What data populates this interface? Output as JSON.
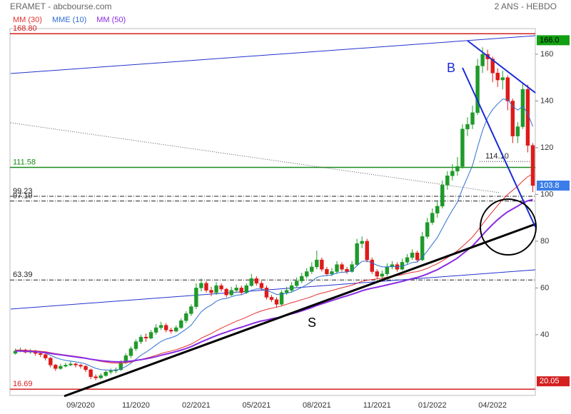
{
  "chart_data": {
    "type": "candlestick",
    "title": "ERAMET - abcbourse.com",
    "subtitle": "2 ANS - HEBDO",
    "annotations": [
      "B",
      "S"
    ],
    "categories": [
      null,
      null,
      null,
      null,
      null,
      null,
      null,
      null,
      null,
      null,
      null,
      null,
      null,
      "09/2020",
      null,
      null,
      null,
      null,
      null,
      null,
      null,
      null,
      null,
      null,
      "11/2020",
      null,
      null,
      null,
      null,
      null,
      null,
      null,
      null,
      null,
      null,
      null,
      "02/2021",
      null,
      null,
      null,
      null,
      null,
      null,
      null,
      null,
      null,
      null,
      null,
      "05/2021",
      null,
      null,
      null,
      null,
      null,
      null,
      null,
      null,
      null,
      null,
      null,
      "08/2021",
      null,
      null,
      null,
      null,
      null,
      null,
      null,
      null,
      null,
      null,
      null,
      "11/2021",
      null,
      null,
      null,
      null,
      null,
      null,
      null,
      null,
      null,
      null,
      "01/2022",
      null,
      null,
      null,
      null,
      null,
      null,
      null,
      null,
      null,
      null,
      null,
      "04/2022",
      null,
      null,
      null,
      null,
      null,
      null,
      null,
      null
    ],
    "candles": [
      [
        32,
        34,
        31.5,
        33
      ],
      [
        33,
        34.5,
        32.5,
        33.5
      ],
      [
        33.5,
        34,
        32,
        32.5
      ],
      [
        32.5,
        33.8,
        31.8,
        33
      ],
      [
        33,
        33.5,
        31,
        32
      ],
      [
        32,
        32.5,
        30.5,
        31.5
      ],
      [
        31.5,
        32,
        29,
        30
      ],
      [
        30,
        30.5,
        26,
        27
      ],
      [
        27,
        27.5,
        24.5,
        25.5
      ],
      [
        25.5,
        27.5,
        25,
        26.5
      ],
      [
        26.5,
        28,
        26,
        27
      ],
      [
        27,
        28.5,
        26.5,
        27.5
      ],
      [
        27.5,
        28,
        26,
        27
      ],
      [
        27,
        27.5,
        25.5,
        26.5
      ],
      [
        26.5,
        27,
        24,
        25
      ],
      [
        25,
        25.5,
        21,
        22
      ],
      [
        22,
        23,
        20.5,
        21.5
      ],
      [
        21.5,
        23.5,
        21,
        22.5
      ],
      [
        22.5,
        25,
        22,
        24
      ],
      [
        24,
        25.5,
        23,
        24.5
      ],
      [
        24.5,
        26,
        23.5,
        25
      ],
      [
        25,
        29,
        24.5,
        28
      ],
      [
        28,
        32,
        27.5,
        31
      ],
      [
        31,
        35,
        30,
        34
      ],
      [
        34,
        38,
        33,
        37
      ],
      [
        37,
        40,
        36,
        39
      ],
      [
        39,
        40.5,
        37,
        38.5
      ],
      [
        38.5,
        42,
        38,
        41
      ],
      [
        41,
        44.5,
        40,
        43
      ],
      [
        43,
        45.5,
        42,
        44
      ],
      [
        44,
        45,
        41,
        42
      ],
      [
        42,
        43,
        40.5,
        41.5
      ],
      [
        41.5,
        44,
        41,
        43
      ],
      [
        43,
        47,
        42.5,
        46
      ],
      [
        46,
        50,
        45,
        49
      ],
      [
        49,
        53,
        48,
        52
      ],
      [
        52,
        62,
        51,
        60
      ],
      [
        60,
        64,
        58.5,
        62
      ],
      [
        62,
        63,
        58,
        59
      ],
      [
        59,
        60.5,
        56.5,
        58
      ],
      [
        58,
        62.5,
        57,
        61
      ],
      [
        61,
        62,
        58.5,
        59.5
      ],
      [
        59.5,
        60,
        56,
        57
      ],
      [
        57,
        60.5,
        56.5,
        59
      ],
      [
        59,
        61.5,
        58,
        60
      ],
      [
        60,
        61,
        57,
        58
      ],
      [
        58,
        62,
        57.5,
        61
      ],
      [
        61,
        66,
        60.5,
        64
      ],
      [
        64,
        65,
        61,
        62
      ],
      [
        62,
        63,
        59,
        60
      ],
      [
        60,
        61,
        55,
        56
      ],
      [
        56,
        57,
        54,
        55
      ],
      [
        55,
        56,
        51.5,
        53
      ],
      [
        53,
        59,
        52.5,
        58
      ],
      [
        58,
        60.5,
        57,
        59
      ],
      [
        59,
        62.5,
        58,
        61
      ],
      [
        61,
        64.5,
        60,
        63
      ],
      [
        63,
        66.5,
        62,
        65
      ],
      [
        65,
        68.5,
        64,
        67
      ],
      [
        67,
        71,
        66,
        69
      ],
      [
        69,
        76,
        68,
        72
      ],
      [
        72,
        73,
        67,
        68
      ],
      [
        68,
        69,
        65,
        66
      ],
      [
        66,
        68.5,
        65,
        67
      ],
      [
        67,
        71.5,
        66,
        70
      ],
      [
        70,
        71,
        67,
        68
      ],
      [
        68,
        69,
        66,
        67
      ],
      [
        67,
        71.5,
        66.5,
        70
      ],
      [
        70,
        81,
        69.5,
        79
      ],
      [
        79,
        82,
        77,
        80
      ],
      [
        80,
        81,
        71,
        72
      ],
      [
        72,
        73,
        66,
        67
      ],
      [
        67,
        68,
        64,
        65
      ],
      [
        65,
        67.5,
        64,
        66
      ],
      [
        66,
        70.5,
        65,
        69
      ],
      [
        69,
        71.5,
        68,
        70
      ],
      [
        70,
        71,
        67,
        68
      ],
      [
        68,
        72.5,
        67.5,
        71
      ],
      [
        71,
        74.5,
        70,
        73
      ],
      [
        73,
        76.5,
        72,
        75
      ],
      [
        75,
        76,
        71,
        72
      ],
      [
        72,
        84,
        71.5,
        82
      ],
      [
        82,
        90,
        81,
        88
      ],
      [
        88,
        94,
        87,
        92
      ],
      [
        92,
        97,
        90,
        95
      ],
      [
        95,
        106,
        94,
        104
      ],
      [
        104,
        110,
        102,
        108
      ],
      [
        108,
        113,
        106,
        110
      ],
      [
        110,
        116,
        108,
        112
      ],
      [
        112,
        130,
        111,
        128
      ],
      [
        128,
        133,
        125,
        130
      ],
      [
        130,
        138,
        128,
        135
      ],
      [
        135,
        158,
        134,
        155
      ],
      [
        155,
        163,
        152,
        160
      ],
      [
        160,
        162,
        153,
        158
      ],
      [
        158,
        159,
        148,
        152
      ],
      [
        152,
        154,
        146,
        149
      ],
      [
        149,
        153,
        145,
        150
      ],
      [
        150,
        151,
        136,
        140
      ],
      [
        140,
        141,
        122,
        125
      ],
      [
        125,
        131,
        122,
        129
      ],
      [
        129,
        148,
        128,
        145
      ],
      [
        145,
        147,
        118,
        121
      ],
      [
        121,
        122,
        101,
        103.8
      ]
    ],
    "up_color": "#1f9a2a",
    "down_color": "#dd1b1b",
    "series": [
      {
        "name": "MM (30)",
        "color": "#e53030",
        "values": [
          33.5,
          33.4,
          33.3,
          33.2,
          33.1,
          32.9,
          32.7,
          32.3,
          31.9,
          31.6,
          31.3,
          31,
          30.7,
          30.4,
          30,
          29.5,
          29,
          28.6,
          28.3,
          28,
          27.8,
          27.8,
          28,
          28.3,
          28.8,
          29.4,
          29.9,
          30.5,
          31.2,
          31.9,
          32.5,
          33,
          33.6,
          34.3,
          35.1,
          36,
          37.2,
          38.5,
          39.5,
          40.5,
          41.7,
          42.8,
          43.8,
          44.8,
          45.8,
          46.6,
          47.5,
          48.5,
          49.4,
          50.2,
          50.8,
          51.3,
          51.8,
          52.3,
          53,
          53.7,
          54.3,
          55,
          55.6,
          56.3,
          57.2,
          57.8,
          58.3,
          58.9,
          59.5,
          60.1,
          60.6,
          61.2,
          62,
          62.8,
          63.3,
          63.6,
          63.9,
          64.2,
          64.6,
          65,
          65.3,
          65.7,
          66.2,
          66.7,
          67,
          67.6,
          68.4,
          69.4,
          70.4,
          71.6,
          73,
          74.4,
          75.9,
          77.8,
          79.7,
          81.8,
          84.5,
          87.3,
          90.1,
          92.7,
          95.3,
          97.8,
          100,
          101.8,
          103.6,
          105.8,
          107.6,
          108.9
        ]
      },
      {
        "name": "MME (10)",
        "color": "#2f6fd0",
        "values": [
          33,
          33.1,
          33,
          33,
          32.8,
          32.6,
          32.1,
          31.2,
          30.2,
          29.5,
          29,
          28.7,
          28.4,
          28,
          27.5,
          26.5,
          25.6,
          25.1,
          24.9,
          24.8,
          24.8,
          25.4,
          26.4,
          27.8,
          29.5,
          31.2,
          32.5,
          34,
          35.6,
          37.1,
          38.1,
          38.7,
          39.5,
          40.9,
          42.4,
          44.1,
          47,
          49.8,
          51.5,
          52.7,
          54.3,
          55.2,
          55.5,
          56.2,
          56.9,
          57.1,
          57.9,
          59,
          59.6,
          59.6,
          58.9,
          58.2,
          57.2,
          57.4,
          57.7,
          58.3,
          59.2,
          60.2,
          61.4,
          62.8,
          64.5,
          65.1,
          65.3,
          65.6,
          66.4,
          66.7,
          66.8,
          67.4,
          69.5,
          71.4,
          71.5,
          70.7,
          69.7,
          69,
          69,
          69.2,
          69,
          69.4,
          70,
          70.9,
          71.1,
          73.1,
          75.8,
          78.7,
          81.6,
          85.6,
          89.6,
          93.3,
          96.7,
          102.4,
          107.4,
          112.4,
          120.2,
          127.4,
          132.9,
          136.4,
          138.7,
          140.8,
          140.6,
          137.7,
          136.1,
          137.7,
          134.7,
          129.1
        ]
      },
      {
        "name": "MM (50)",
        "color": "#8a2be2",
        "values": [
          33,
          33,
          32.9,
          32.8,
          32.7,
          32.5,
          32.3,
          32,
          31.7,
          31.4,
          31.1,
          30.8,
          30.5,
          30.2,
          29.9,
          29.5,
          29.2,
          28.9,
          28.7,
          28.5,
          28.4,
          28.4,
          28.5,
          28.7,
          29,
          29.3,
          29.7,
          30.1,
          30.6,
          31.2,
          31.7,
          32.2,
          32.8,
          33.4,
          34.1,
          34.9,
          35.9,
          36.9,
          37.8,
          38.7,
          39.6,
          40.4,
          41.1,
          41.9,
          42.6,
          43.2,
          43.9,
          44.6,
          45.3,
          45.9,
          46.3,
          46.8,
          47.2,
          47.7,
          48.3,
          48.9,
          49.5,
          50.2,
          50.9,
          51.6,
          52.5,
          53.2,
          53.9,
          54.6,
          55.3,
          56,
          56.6,
          57.3,
          58,
          58.8,
          59.4,
          59.9,
          60.3,
          60.8,
          61.3,
          61.8,
          62.3,
          62.8,
          63.4,
          64,
          64.5,
          65.2,
          66,
          66.9,
          67.8,
          69,
          70.2,
          71.5,
          72.8,
          74.5,
          76.2,
          78,
          80.3,
          82.7,
          85,
          87.2,
          89.2,
          91,
          92.6,
          93.8,
          95,
          96.4,
          97.3,
          97.8
        ]
      }
    ],
    "ylim": [
      14,
      171
    ],
    "yticks": [
      40,
      60,
      80,
      100,
      120,
      140,
      160
    ],
    "levels": [
      {
        "value": 168.8,
        "label": "168.80",
        "color": "#d42020",
        "style": "solid"
      },
      {
        "value": 111.58,
        "label": "111.58",
        "color": "#1a8a1a",
        "style": "solid"
      },
      {
        "value": 99.23,
        "label": "99.23",
        "color": "#222222",
        "style": "dashdot"
      },
      {
        "value": 97.19,
        "label": "97.19",
        "color": "#222222",
        "style": "dashdot"
      },
      {
        "value": 63.39,
        "label": "63.39",
        "color": "#222222",
        "style": "dashdot"
      },
      {
        "value": 16.69,
        "label": "16.69",
        "color": "#d42020",
        "style": "solid"
      },
      {
        "value": 114.1,
        "label": "114.10",
        "color": "#222222",
        "style": "dotted"
      }
    ],
    "price_labels": [
      {
        "value": 166,
        "label": "166.0",
        "color": "#12a012"
      },
      {
        "value": 103.8,
        "label": "103.8",
        "color": "#3b7de8"
      },
      {
        "value": 20.05,
        "label": "20.05",
        "color": "#d42020"
      }
    ]
  }
}
